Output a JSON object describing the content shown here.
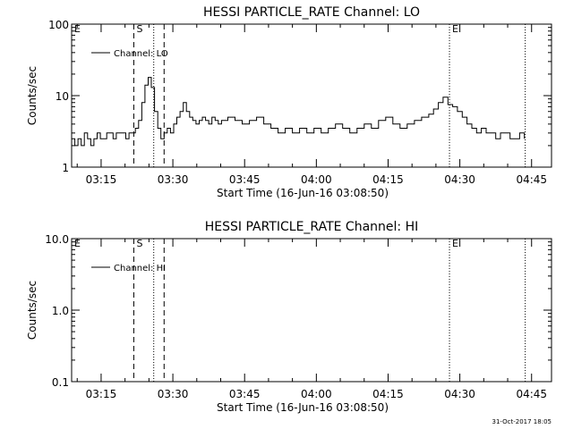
{
  "footer": {
    "timestamp": "31-Oct-2017 18:05"
  },
  "chart_data": [
    {
      "type": "line",
      "title": "HESSI PARTICLE_RATE Channel: LO",
      "xlabel": "Start Time (16-Jun-16 03:08:50)",
      "ylabel": "Counts/sec",
      "yscale": "log",
      "ylim": [
        1,
        100
      ],
      "xlim": [
        "03:08:50",
        "04:49:10"
      ],
      "yticks": [
        1,
        10,
        100
      ],
      "ytick_labels": [
        "1",
        "10",
        "100"
      ],
      "xtick_labels": [
        "03:15",
        "03:30",
        "03:45",
        "04:00",
        "04:15",
        "04:30",
        "04:45"
      ],
      "grid": false,
      "legend": {
        "position": "top-left",
        "entries": [
          "Channel: LO"
        ]
      },
      "markers": [
        {
          "label": "E",
          "time": "03:08:50",
          "style": "none"
        },
        {
          "label": "S",
          "time": "03:21:50",
          "style": "dashed"
        },
        {
          "label": "",
          "time": "03:26:00",
          "style": "dotted"
        },
        {
          "label": "",
          "time": "03:28:10",
          "style": "dashed"
        },
        {
          "label": "E",
          "time": "04:27:50",
          "style": "dotted"
        },
        {
          "label": "",
          "time": "04:43:40",
          "style": "dotted"
        }
      ],
      "series": [
        {
          "name": "Channel: LO",
          "times": [
            "03:08:50",
            "03:09:30",
            "03:10:10",
            "03:10:50",
            "03:11:30",
            "03:12:10",
            "03:12:50",
            "03:13:30",
            "03:14:10",
            "03:14:50",
            "03:15:30",
            "03:16:10",
            "03:16:50",
            "03:17:30",
            "03:18:10",
            "03:18:50",
            "03:19:30",
            "03:20:10",
            "03:20:50",
            "03:21:30",
            "03:22:10",
            "03:22:50",
            "03:23:30",
            "03:24:10",
            "03:24:50",
            "03:25:30",
            "03:26:10",
            "03:26:50",
            "03:27:30",
            "03:28:10",
            "03:28:50",
            "03:29:30",
            "03:30:10",
            "03:30:50",
            "03:31:30",
            "03:32:10",
            "03:32:50",
            "03:33:30",
            "03:34:10",
            "03:34:50",
            "03:35:30",
            "03:36:10",
            "03:36:50",
            "03:37:30",
            "03:38:10",
            "03:38:50",
            "03:39:30",
            "03:40:10",
            "03:41:30",
            "03:43:00",
            "03:44:30",
            "03:46:00",
            "03:47:30",
            "03:49:00",
            "03:50:30",
            "03:52:00",
            "03:53:30",
            "03:55:00",
            "03:56:30",
            "03:58:00",
            "03:59:30",
            "04:01:00",
            "04:02:30",
            "04:04:00",
            "04:05:30",
            "04:07:00",
            "04:08:30",
            "04:10:00",
            "04:11:30",
            "04:13:00",
            "04:14:30",
            "04:16:00",
            "04:17:30",
            "04:19:00",
            "04:20:30",
            "04:22:00",
            "04:23:30",
            "04:24:30",
            "04:25:30",
            "04:26:30",
            "04:27:30",
            "04:28:30",
            "04:29:30",
            "04:30:30",
            "04:31:30",
            "04:32:30",
            "04:33:30",
            "04:34:30",
            "04:35:30",
            "04:36:30",
            "04:37:30",
            "04:38:30",
            "04:39:30",
            "04:40:30",
            "04:41:30",
            "04:42:30",
            "04:43:30"
          ],
          "values": [
            2.5,
            2.0,
            2.5,
            2.0,
            3.0,
            2.5,
            2.0,
            2.5,
            3.0,
            2.5,
            2.5,
            3.0,
            3.0,
            2.5,
            3.0,
            3.0,
            3.0,
            2.5,
            3.0,
            3.0,
            3.5,
            4.5,
            8.0,
            14.0,
            18.0,
            13.0,
            6.0,
            3.5,
            2.5,
            3.0,
            3.5,
            3.0,
            4.0,
            5.0,
            6.0,
            8.0,
            6.0,
            5.0,
            4.5,
            4.0,
            4.5,
            5.0,
            4.5,
            4.0,
            5.0,
            4.5,
            4.0,
            4.5,
            5.0,
            4.5,
            4.0,
            4.5,
            5.0,
            4.0,
            3.5,
            3.0,
            3.5,
            3.0,
            3.5,
            3.0,
            3.5,
            3.0,
            3.5,
            4.0,
            3.5,
            3.0,
            3.5,
            4.0,
            3.5,
            4.5,
            5.0,
            4.0,
            3.5,
            4.0,
            4.5,
            5.0,
            5.5,
            6.5,
            8.0,
            9.5,
            7.5,
            7.0,
            6.0,
            5.0,
            4.0,
            3.5,
            3.0,
            3.5,
            3.0,
            3.0,
            2.5,
            3.0,
            3.0,
            2.5,
            2.5,
            3.0,
            2.5
          ]
        }
      ]
    },
    {
      "type": "line",
      "title": "HESSI PARTICLE_RATE Channel: HI",
      "xlabel": "Start Time (16-Jun-16 03:08:50)",
      "ylabel": "Counts/sec",
      "yscale": "log",
      "ylim": [
        0.1,
        10
      ],
      "xlim": [
        "03:08:50",
        "04:49:10"
      ],
      "yticks": [
        0.1,
        1,
        10
      ],
      "ytick_labels": [
        "0.1",
        "1.0",
        "10.0"
      ],
      "xtick_labels": [
        "03:15",
        "03:30",
        "03:45",
        "04:00",
        "04:15",
        "04:30",
        "04:45"
      ],
      "grid": false,
      "legend": {
        "position": "top-left",
        "entries": [
          "Channel: HI"
        ]
      },
      "markers": [
        {
          "label": "E",
          "time": "03:08:50",
          "style": "none"
        },
        {
          "label": "S",
          "time": "03:21:50",
          "style": "dashed"
        },
        {
          "label": "",
          "time": "03:26:00",
          "style": "dotted"
        },
        {
          "label": "",
          "time": "03:28:10",
          "style": "dashed"
        },
        {
          "label": "E",
          "time": "04:27:50",
          "style": "dotted"
        },
        {
          "label": "",
          "time": "04:43:40",
          "style": "dotted"
        }
      ],
      "series": [
        {
          "name": "Channel: HI",
          "times": [],
          "values": []
        }
      ]
    }
  ]
}
